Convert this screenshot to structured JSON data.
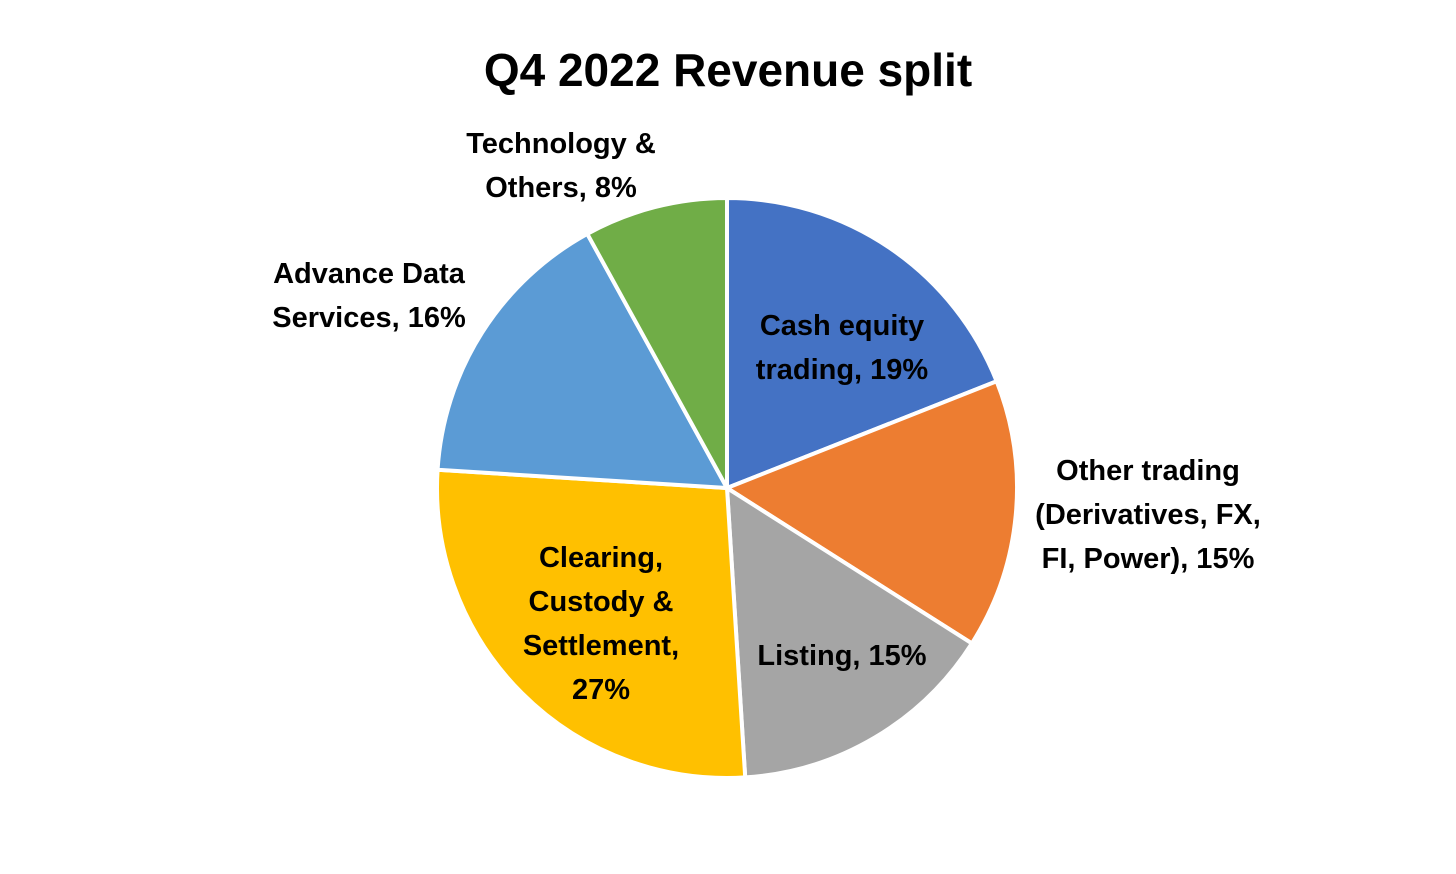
{
  "chart_data": {
    "type": "pie",
    "title": "Q4 2022 Revenue split",
    "start_angle_deg": 0,
    "direction": "clockwise",
    "slices": [
      {
        "label_lines": [
          "Cash equity",
          "trading, 19%"
        ],
        "value": 19,
        "color": "#4472C4"
      },
      {
        "label_lines": [
          "Other trading",
          "(Derivatives, FX,",
          "FI, Power), 15%"
        ],
        "value": 15,
        "color": "#ED7D31"
      },
      {
        "label_lines": [
          "Listing, 15%"
        ],
        "value": 15,
        "color": "#A5A5A5"
      },
      {
        "label_lines": [
          "Clearing,",
          "Custody &",
          "Settlement,",
          "27%"
        ],
        "value": 27,
        "color": "#FFC000"
      },
      {
        "label_lines": [
          "Advance Data",
          "Services, 16%"
        ],
        "value": 16,
        "color": "#5B9BD5"
      },
      {
        "label_lines": [
          "Technology &",
          "Others, 8%"
        ],
        "value": 8,
        "color": "#70AD47"
      }
    ]
  }
}
